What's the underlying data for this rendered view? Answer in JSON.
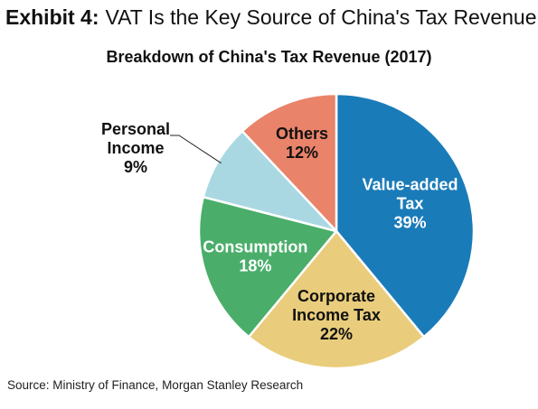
{
  "exhibit": {
    "label": "Exhibit 4:",
    "title": "VAT Is the Key Source of China's Tax Revenue"
  },
  "chart_data": {
    "type": "pie",
    "title": "Breakdown of China's Tax Revenue (2017)",
    "slices": [
      {
        "label_lines": [
          "Value-added",
          "Tax"
        ],
        "value": 39,
        "value_label": "39%",
        "color": "#1a7bb9",
        "label_color": "#ffffff"
      },
      {
        "label_lines": [
          "Corporate",
          "Income Tax"
        ],
        "value": 22,
        "value_label": "22%",
        "color": "#e9cd7c",
        "label_color": "#111111"
      },
      {
        "label_lines": [
          "Consumption"
        ],
        "value": 18,
        "value_label": "18%",
        "color": "#4aae6a",
        "label_color": "#ffffff"
      },
      {
        "label_lines": [
          "Personal",
          "Income"
        ],
        "value": 9,
        "value_label": "9%",
        "color": "#aad8e2",
        "label_color": "#111111"
      },
      {
        "label_lines": [
          "Others"
        ],
        "value": 12,
        "value_label": "12%",
        "color": "#e9836a",
        "label_color": "#111111"
      }
    ]
  },
  "source": "Source: Ministry of Finance, Morgan Stanley Research"
}
